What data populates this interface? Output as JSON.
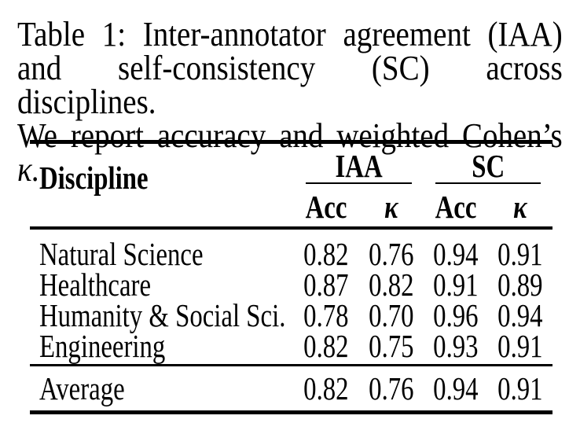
{
  "colors": {
    "text": "#000000",
    "background": "#ffffff",
    "rule": "#000000"
  },
  "caption": {
    "label_number": "Table 1:",
    "line1": "Table 1:  Inter-annotator agreement (IAA)",
    "line2": "and self-consistency (SC) across disciplines.",
    "line3_prefix": "We report accuracy and weighted Cohen’s",
    "line3_symbol": "κ."
  },
  "table": {
    "discipline_header": "Discipline",
    "groups": [
      {
        "label": "IAA"
      },
      {
        "label": "SC"
      }
    ],
    "subheaders": [
      "Acc",
      "κ",
      "Acc",
      "κ"
    ],
    "rows": [
      {
        "discipline": "Natural Science",
        "values": [
          "0.82",
          "0.76",
          "0.94",
          "0.91"
        ]
      },
      {
        "discipline": "Healthcare",
        "values": [
          "0.87",
          "0.82",
          "0.91",
          "0.89"
        ]
      },
      {
        "discipline": "Humanity & Social Sci.",
        "values": [
          "0.78",
          "0.70",
          "0.96",
          "0.94"
        ]
      },
      {
        "discipline": "Engineering",
        "values": [
          "0.82",
          "0.75",
          "0.93",
          "0.91"
        ]
      }
    ],
    "average": {
      "label": "Average",
      "values": [
        "0.82",
        "0.76",
        "0.94",
        "0.91"
      ]
    }
  }
}
